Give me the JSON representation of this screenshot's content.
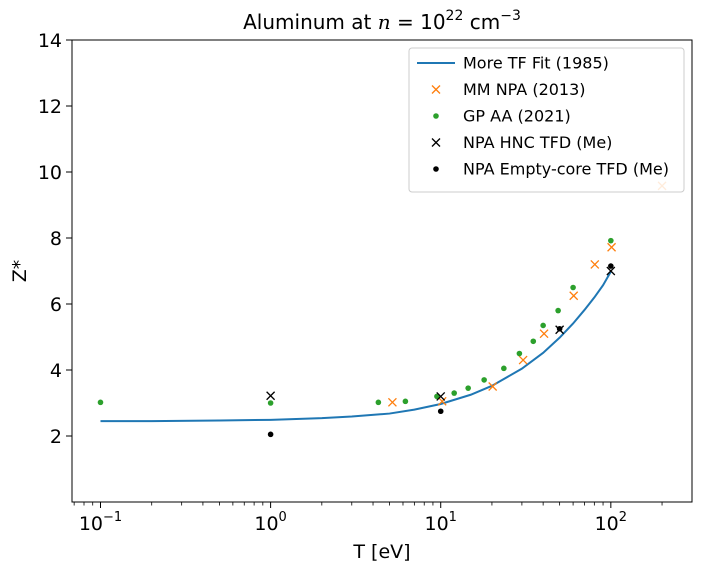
{
  "chart_data": {
    "type": "scatter",
    "title": {
      "prefix": "Aluminum at ",
      "var": "n",
      "eq": " = 10",
      "exp": "22",
      "unit": " cm",
      "unit_exp": "−3"
    },
    "xlabel": "T [eV]",
    "ylabel": "Z*",
    "xscale": "log",
    "xlim": [
      0.068,
      300
    ],
    "ylim": [
      0,
      14
    ],
    "grid": false,
    "legend_position": "top-right",
    "x_ticks": [
      {
        "value": 0.1,
        "base": "10",
        "exp": "−1"
      },
      {
        "value": 1,
        "base": "10",
        "exp": "0"
      },
      {
        "value": 10,
        "base": "10",
        "exp": "1"
      },
      {
        "value": 100,
        "base": "10",
        "exp": "2"
      }
    ],
    "y_ticks": [
      {
        "value": 2,
        "label": "2"
      },
      {
        "value": 4,
        "label": "4"
      },
      {
        "value": 6,
        "label": "6"
      },
      {
        "value": 8,
        "label": "8"
      },
      {
        "value": 10,
        "label": "10"
      },
      {
        "value": 12,
        "label": "12"
      },
      {
        "value": 14,
        "label": "14"
      }
    ],
    "series": [
      {
        "name": "More TF Fit (1985)",
        "kind": "line",
        "color": "#1f77b4",
        "x": [
          0.1,
          0.2,
          0.5,
          1,
          2,
          3,
          5,
          7,
          10,
          15,
          20,
          30,
          40,
          50,
          60,
          70,
          80,
          90,
          100
        ],
        "y": [
          2.45,
          2.45,
          2.47,
          2.49,
          2.54,
          2.59,
          2.68,
          2.8,
          2.97,
          3.25,
          3.52,
          4.04,
          4.52,
          4.98,
          5.41,
          5.82,
          6.2,
          6.57,
          6.98
        ]
      },
      {
        "name": "MM NPA (2013)",
        "kind": "x-marker",
        "color": "#ff7f0e",
        "x": [
          5.2,
          10.2,
          20.2,
          30.5,
          40.5,
          60.5,
          80.5,
          101,
          200
        ],
        "y": [
          3.02,
          3.05,
          3.5,
          4.3,
          5.1,
          6.25,
          7.2,
          7.72,
          9.58
        ]
      },
      {
        "name": "GP AA (2021)",
        "kind": "dot",
        "color": "#2ca02c",
        "x": [
          0.1,
          1,
          4.3,
          6.2,
          9.5,
          12,
          14.5,
          18,
          23.5,
          29,
          35,
          40,
          49,
          60,
          100
        ],
        "y": [
          3.02,
          3.0,
          3.02,
          3.05,
          3.2,
          3.3,
          3.45,
          3.7,
          4.05,
          4.5,
          4.87,
          5.35,
          5.8,
          6.5,
          7.92
        ]
      },
      {
        "name": "NPA HNC TFD (Me)",
        "kind": "x-marker",
        "color": "#000000",
        "x": [
          1,
          10,
          50,
          100
        ],
        "y": [
          3.22,
          3.2,
          5.22,
          7.0
        ]
      },
      {
        "name": "NPA Empty-core TFD (Me)",
        "kind": "dot",
        "color": "#000000",
        "x": [
          1,
          10,
          50,
          100
        ],
        "y": [
          2.05,
          2.75,
          5.25,
          7.15
        ]
      }
    ]
  }
}
